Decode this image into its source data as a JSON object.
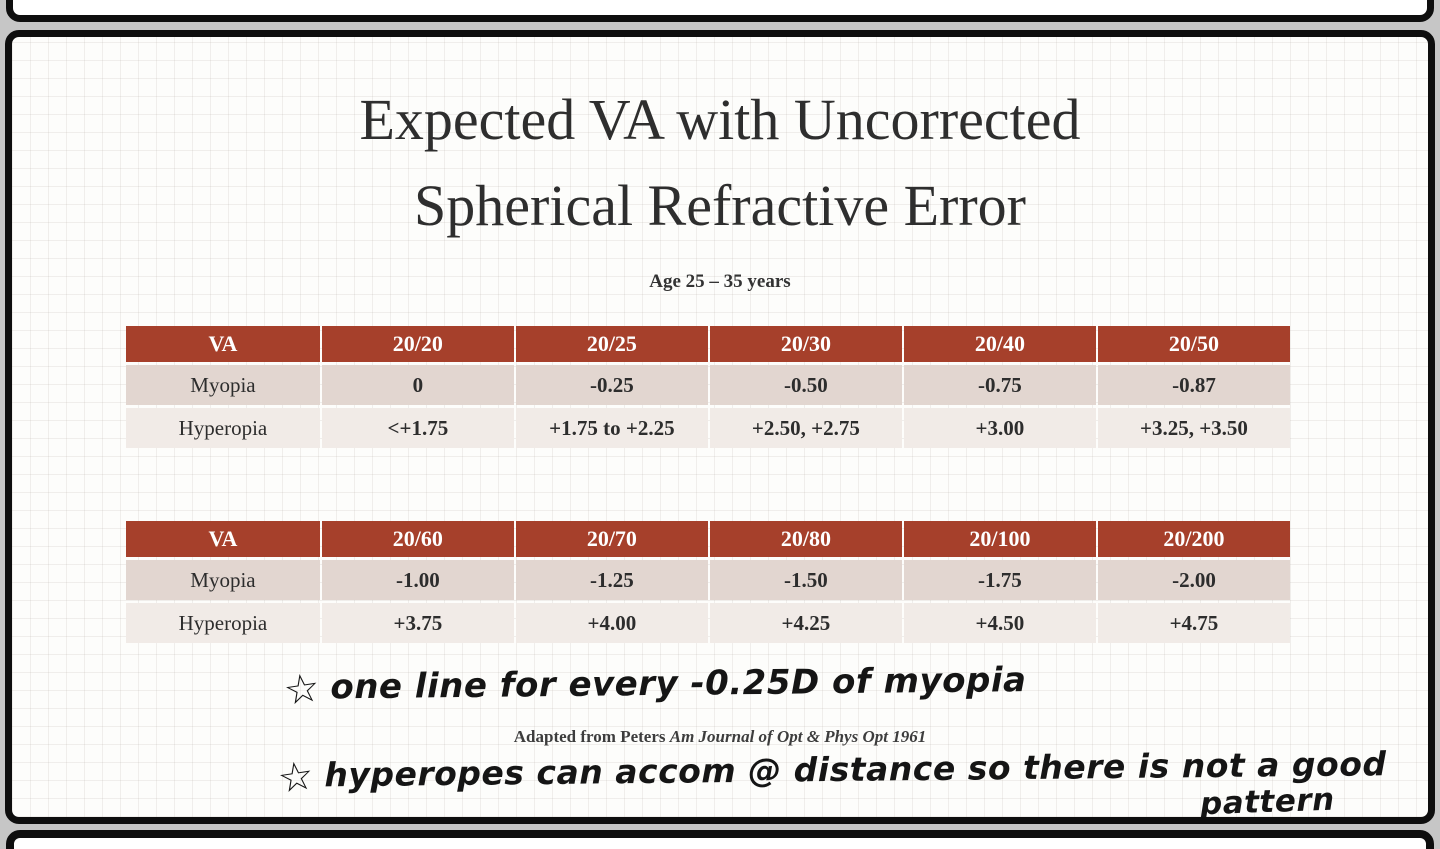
{
  "slide": {
    "title_line1": "Expected VA with Uncorrected",
    "title_line2": "Spherical Refractive Error",
    "subtitle": "Age 25 – 35 years",
    "colors": {
      "header_bg": "#A6402B",
      "row_myopia_bg": "#E2D6D0",
      "row_hyperopia_bg": "#F1EBE7"
    },
    "tables": [
      {
        "headers": [
          "VA",
          "20/20",
          "20/25",
          "20/30",
          "20/40",
          "20/50"
        ],
        "rows": [
          {
            "label": "Myopia",
            "values": [
              "0",
              "-0.25",
              "-0.50",
              "-0.75",
              "-0.87"
            ]
          },
          {
            "label": "Hyperopia",
            "values": [
              "<+1.75",
              "+1.75 to +2.25",
              "+2.50, +2.75",
              "+3.00",
              "+3.25, +3.50"
            ]
          }
        ]
      },
      {
        "headers": [
          "VA",
          "20/60",
          "20/70",
          "20/80",
          "20/100",
          "20/200"
        ],
        "rows": [
          {
            "label": "Myopia",
            "values": [
              "-1.00",
              "-1.25",
              "-1.50",
              "-1.75",
              "-2.00"
            ]
          },
          {
            "label": "Hyperopia",
            "values": [
              "+3.75",
              "+4.00",
              "+4.25",
              "+4.50",
              "+4.75"
            ]
          }
        ]
      }
    ],
    "annotations": {
      "star": "☆",
      "note1": "one line for every -0.25D of myopia",
      "note2": "hyperopes can accom @ distance so there is not a good",
      "note2_wrap": "pattern",
      "citation_plain": "Adapted from Peters ",
      "citation_italic": "Am Journal of Opt & Phys Opt 1961"
    }
  }
}
